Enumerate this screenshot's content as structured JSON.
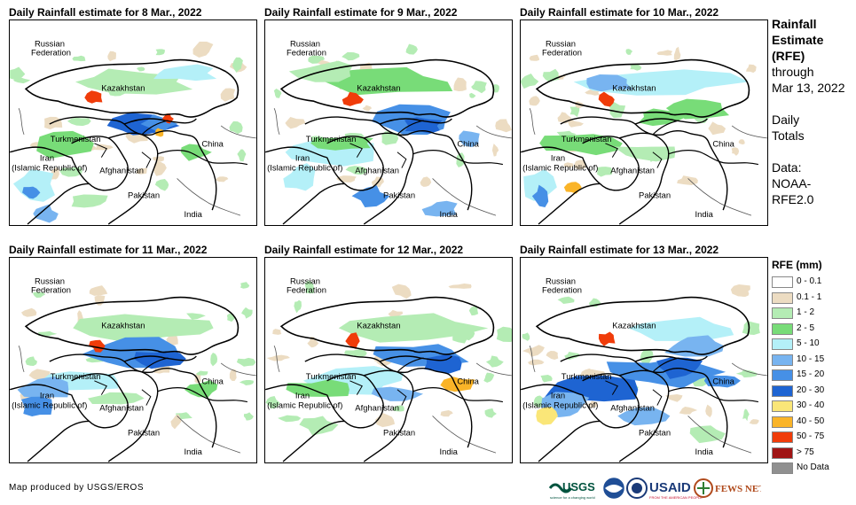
{
  "panels": [
    {
      "title": "Daily Rainfall estimate for 8 Mar., 2022"
    },
    {
      "title": "Daily Rainfall estimate for 9 Mar., 2022"
    },
    {
      "title": "Daily Rainfall estimate for 10 Mar., 2022"
    },
    {
      "title": "Daily Rainfall estimate for 11 Mar., 2022"
    },
    {
      "title": "Daily Rainfall estimate for 12 Mar., 2022"
    },
    {
      "title": "Daily Rainfall estimate for 13 Mar., 2022"
    }
  ],
  "place_labels": {
    "russia1": "Russian",
    "russia2": "Federation",
    "kazakhstan": "Kazakhstan",
    "turkmenistan": "Turkmenistan",
    "china": "China",
    "iran1": "Iran",
    "iran2": "(Islamic Republic of)",
    "afghanistan": "Afghanistan",
    "pakistan": "Pakistan",
    "india": "India"
  },
  "side_info": {
    "title1": "Rainfall",
    "title2": "Estimate",
    "title3": "(RFE)",
    "through": "through",
    "date": "Mar 13, 2022",
    "totals1": "Daily",
    "totals2": "Totals",
    "data1": "Data:",
    "data2": "NOAA-",
    "data3": "RFE2.0"
  },
  "legend": {
    "title": "RFE (mm)",
    "items": [
      {
        "label": "0 - 0.1",
        "color": "#ffffff"
      },
      {
        "label": "0.1 - 1",
        "color": "#ecdcc2"
      },
      {
        "label": "1 - 2",
        "color": "#b4ecb4"
      },
      {
        "label": "2 - 5",
        "color": "#78dc78"
      },
      {
        "label": "5 - 10",
        "color": "#b4f0f8"
      },
      {
        "label": "10 - 15",
        "color": "#78b4f0"
      },
      {
        "label": "15 - 20",
        "color": "#4690e6"
      },
      {
        "label": "20 - 30",
        "color": "#1e64d2"
      },
      {
        "label": "30 - 40",
        "color": "#fae678"
      },
      {
        "label": "40 - 50",
        "color": "#fab428"
      },
      {
        "label": "50 - 75",
        "color": "#f03c0a"
      },
      {
        "label": "> 75",
        "color": "#a01414"
      },
      {
        "label": "No Data",
        "color": "#909090"
      }
    ]
  },
  "credit": "Map produced by USGS/EROS",
  "logos": {
    "usgs": "USGS",
    "usgs_tagline": "science for a changing world",
    "usaid": "USAID",
    "usaid_tagline": "FROM THE AMERICAN PEOPLE",
    "fewsnet": "FEWS NET"
  }
}
